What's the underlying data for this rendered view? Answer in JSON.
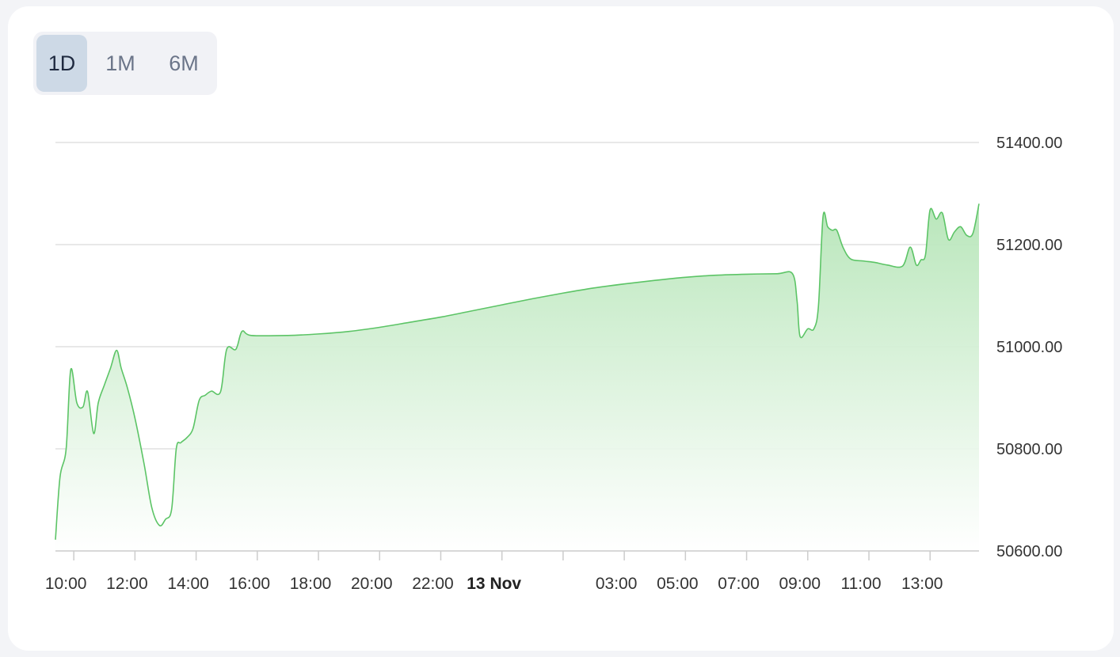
{
  "range_selector": {
    "options": [
      "1D",
      "1M",
      "6M"
    ],
    "active": "1D"
  },
  "colors": {
    "line": "#5cc466",
    "fill_top": "#b5e5b7",
    "fill_bottom": "#ffffff",
    "grid": "#e0e0e0",
    "active_tab": "#cdd9e6"
  },
  "chart_data": {
    "type": "area",
    "title": "",
    "xlabel": "",
    "ylabel": "",
    "ylim": [
      50600,
      51400
    ],
    "yticks": [
      51400,
      51200,
      51000,
      50800,
      50600
    ],
    "ytick_labels": [
      "51400.00",
      "51200.00",
      "51000.00",
      "50800.00",
      "50600.00"
    ],
    "y_axis_position": "right",
    "grid": true,
    "legend": "none",
    "xticks": [
      {
        "label": "10:00",
        "hour": 10,
        "bold": false
      },
      {
        "label": "12:00",
        "hour": 12,
        "bold": false
      },
      {
        "label": "14:00",
        "hour": 14,
        "bold": false
      },
      {
        "label": "16:00",
        "hour": 16,
        "bold": false
      },
      {
        "label": "18:00",
        "hour": 18,
        "bold": false
      },
      {
        "label": "20:00",
        "hour": 20,
        "bold": false
      },
      {
        "label": "22:00",
        "hour": 22,
        "bold": false
      },
      {
        "label": "13 Nov",
        "hour": 24,
        "bold": true
      },
      {
        "label": "",
        "hour": 26,
        "bold": false
      },
      {
        "label": "03:00",
        "hour": 28,
        "bold": false
      },
      {
        "label": "05:00",
        "hour": 30,
        "bold": false
      },
      {
        "label": "07:00",
        "hour": 32,
        "bold": false
      },
      {
        "label": "09:00",
        "hour": 34,
        "bold": false
      },
      {
        "label": "11:00",
        "hour": 36,
        "bold": false
      },
      {
        "label": "13:00",
        "hour": 38,
        "bold": false
      }
    ],
    "x_range": [
      9.4,
      39.6
    ],
    "series": [
      {
        "points": [
          [
            9.4,
            50622
          ],
          [
            9.55,
            50745
          ],
          [
            9.75,
            50800
          ],
          [
            9.9,
            50955
          ],
          [
            10.1,
            50890
          ],
          [
            10.3,
            50882
          ],
          [
            10.45,
            50912
          ],
          [
            10.65,
            50830
          ],
          [
            10.8,
            50890
          ],
          [
            11.0,
            50925
          ],
          [
            11.2,
            50958
          ],
          [
            11.4,
            50993
          ],
          [
            11.55,
            50958
          ],
          [
            11.75,
            50920
          ],
          [
            12.0,
            50860
          ],
          [
            12.3,
            50770
          ],
          [
            12.55,
            50685
          ],
          [
            12.8,
            50650
          ],
          [
            13.0,
            50662
          ],
          [
            13.2,
            50682
          ],
          [
            13.35,
            50800
          ],
          [
            13.5,
            50812
          ],
          [
            13.7,
            50822
          ],
          [
            13.9,
            50840
          ],
          [
            14.1,
            50895
          ],
          [
            14.3,
            50905
          ],
          [
            14.5,
            50913
          ],
          [
            14.8,
            50912
          ],
          [
            15.0,
            50995
          ],
          [
            15.3,
            50995
          ],
          [
            15.5,
            51030
          ],
          [
            15.8,
            51022
          ],
          [
            17.0,
            51022
          ],
          [
            18.0,
            51025
          ],
          [
            19.0,
            51030
          ],
          [
            20.0,
            51038
          ],
          [
            21.0,
            51048
          ],
          [
            22.0,
            51058
          ],
          [
            23.0,
            51070
          ],
          [
            24.0,
            51082
          ],
          [
            25.0,
            51094
          ],
          [
            26.0,
            51105
          ],
          [
            27.0,
            51115
          ],
          [
            28.0,
            51123
          ],
          [
            29.0,
            51130
          ],
          [
            30.0,
            51136
          ],
          [
            31.0,
            51140
          ],
          [
            32.0,
            51142
          ],
          [
            33.0,
            51143
          ],
          [
            33.5,
            51143
          ],
          [
            33.65,
            51090
          ],
          [
            33.75,
            51020
          ],
          [
            34.0,
            51035
          ],
          [
            34.2,
            51035
          ],
          [
            34.35,
            51080
          ],
          [
            34.5,
            51255
          ],
          [
            34.65,
            51235
          ],
          [
            34.8,
            51228
          ],
          [
            34.95,
            51228
          ],
          [
            35.15,
            51195
          ],
          [
            35.4,
            51172
          ],
          [
            35.8,
            51168
          ],
          [
            36.2,
            51165
          ],
          [
            36.6,
            51160
          ],
          [
            37.1,
            51158
          ],
          [
            37.35,
            51195
          ],
          [
            37.55,
            51160
          ],
          [
            37.7,
            51170
          ],
          [
            37.85,
            51180
          ],
          [
            38.0,
            51268
          ],
          [
            38.2,
            51250
          ],
          [
            38.4,
            51262
          ],
          [
            38.6,
            51210
          ],
          [
            38.8,
            51225
          ],
          [
            39.0,
            51235
          ],
          [
            39.2,
            51218
          ],
          [
            39.4,
            51222
          ],
          [
            39.6,
            51280
          ]
        ]
      }
    ]
  }
}
